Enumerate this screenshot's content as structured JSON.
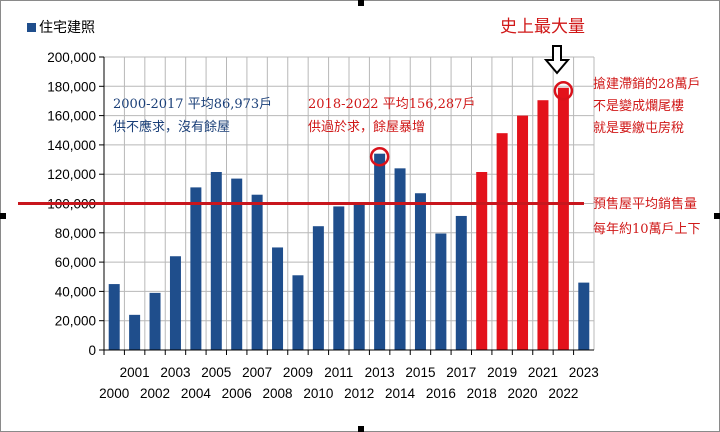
{
  "chart_data": {
    "type": "bar",
    "legend": {
      "label": "住宅建照",
      "position": "top-left"
    },
    "categories": [
      "2000",
      "2001",
      "2002",
      "2003",
      "2004",
      "2005",
      "2006",
      "2007",
      "2008",
      "2009",
      "2010",
      "2011",
      "2012",
      "2013",
      "2014",
      "2015",
      "2016",
      "2017",
      "2018",
      "2019",
      "2020",
      "2021",
      "2022",
      "2023"
    ],
    "series": [
      {
        "name": "住宅建照",
        "values": [
          45000,
          24000,
          39000,
          64000,
          111000,
          121500,
          117000,
          106000,
          70000,
          51000,
          84500,
          98000,
          99000,
          134000,
          124000,
          107000,
          79500,
          91500,
          121500,
          148000,
          160000,
          170500,
          179000,
          46000
        ]
      }
    ],
    "highlight_categories": [
      "2018",
      "2019",
      "2020",
      "2021",
      "2022"
    ],
    "ylim": [
      0,
      200000
    ],
    "yticks": [
      "0",
      "20,000",
      "40,000",
      "60,000",
      "80,000",
      "100,000",
      "120,000",
      "140,000",
      "160,000",
      "180,000",
      "200,000"
    ],
    "grid": true,
    "reference_line": {
      "value": 100000
    },
    "circled_categories": [
      "2013",
      "2022"
    ],
    "annotations": {
      "title": "史上最大量",
      "avg_2000_2017_line1": "2000-2017 平均86,973戶",
      "avg_2000_2017_line2": "供不應求，沒有餘屋",
      "avg_2018_2022_line1": "2018-2022 平均156,287戶",
      "avg_2018_2022_line2": "供過於求，餘屋暴增",
      "right_note_line1": "搶建滯銷的28萬戶",
      "right_note_line2": "不是變成爛尾樓",
      "right_note_line3": "就是要繳屯房稅",
      "ref_note_line1": "預售屋平均銷售量",
      "ref_note_line2": "每年約10萬戶上下"
    },
    "colors": {
      "bar": "#1f4e8c",
      "bar_highlight": "#e3121b",
      "reference_line": "#c8161d",
      "circle": "#d9121b",
      "text_blue": "#1a3f78",
      "text_red": "#d01818"
    }
  }
}
